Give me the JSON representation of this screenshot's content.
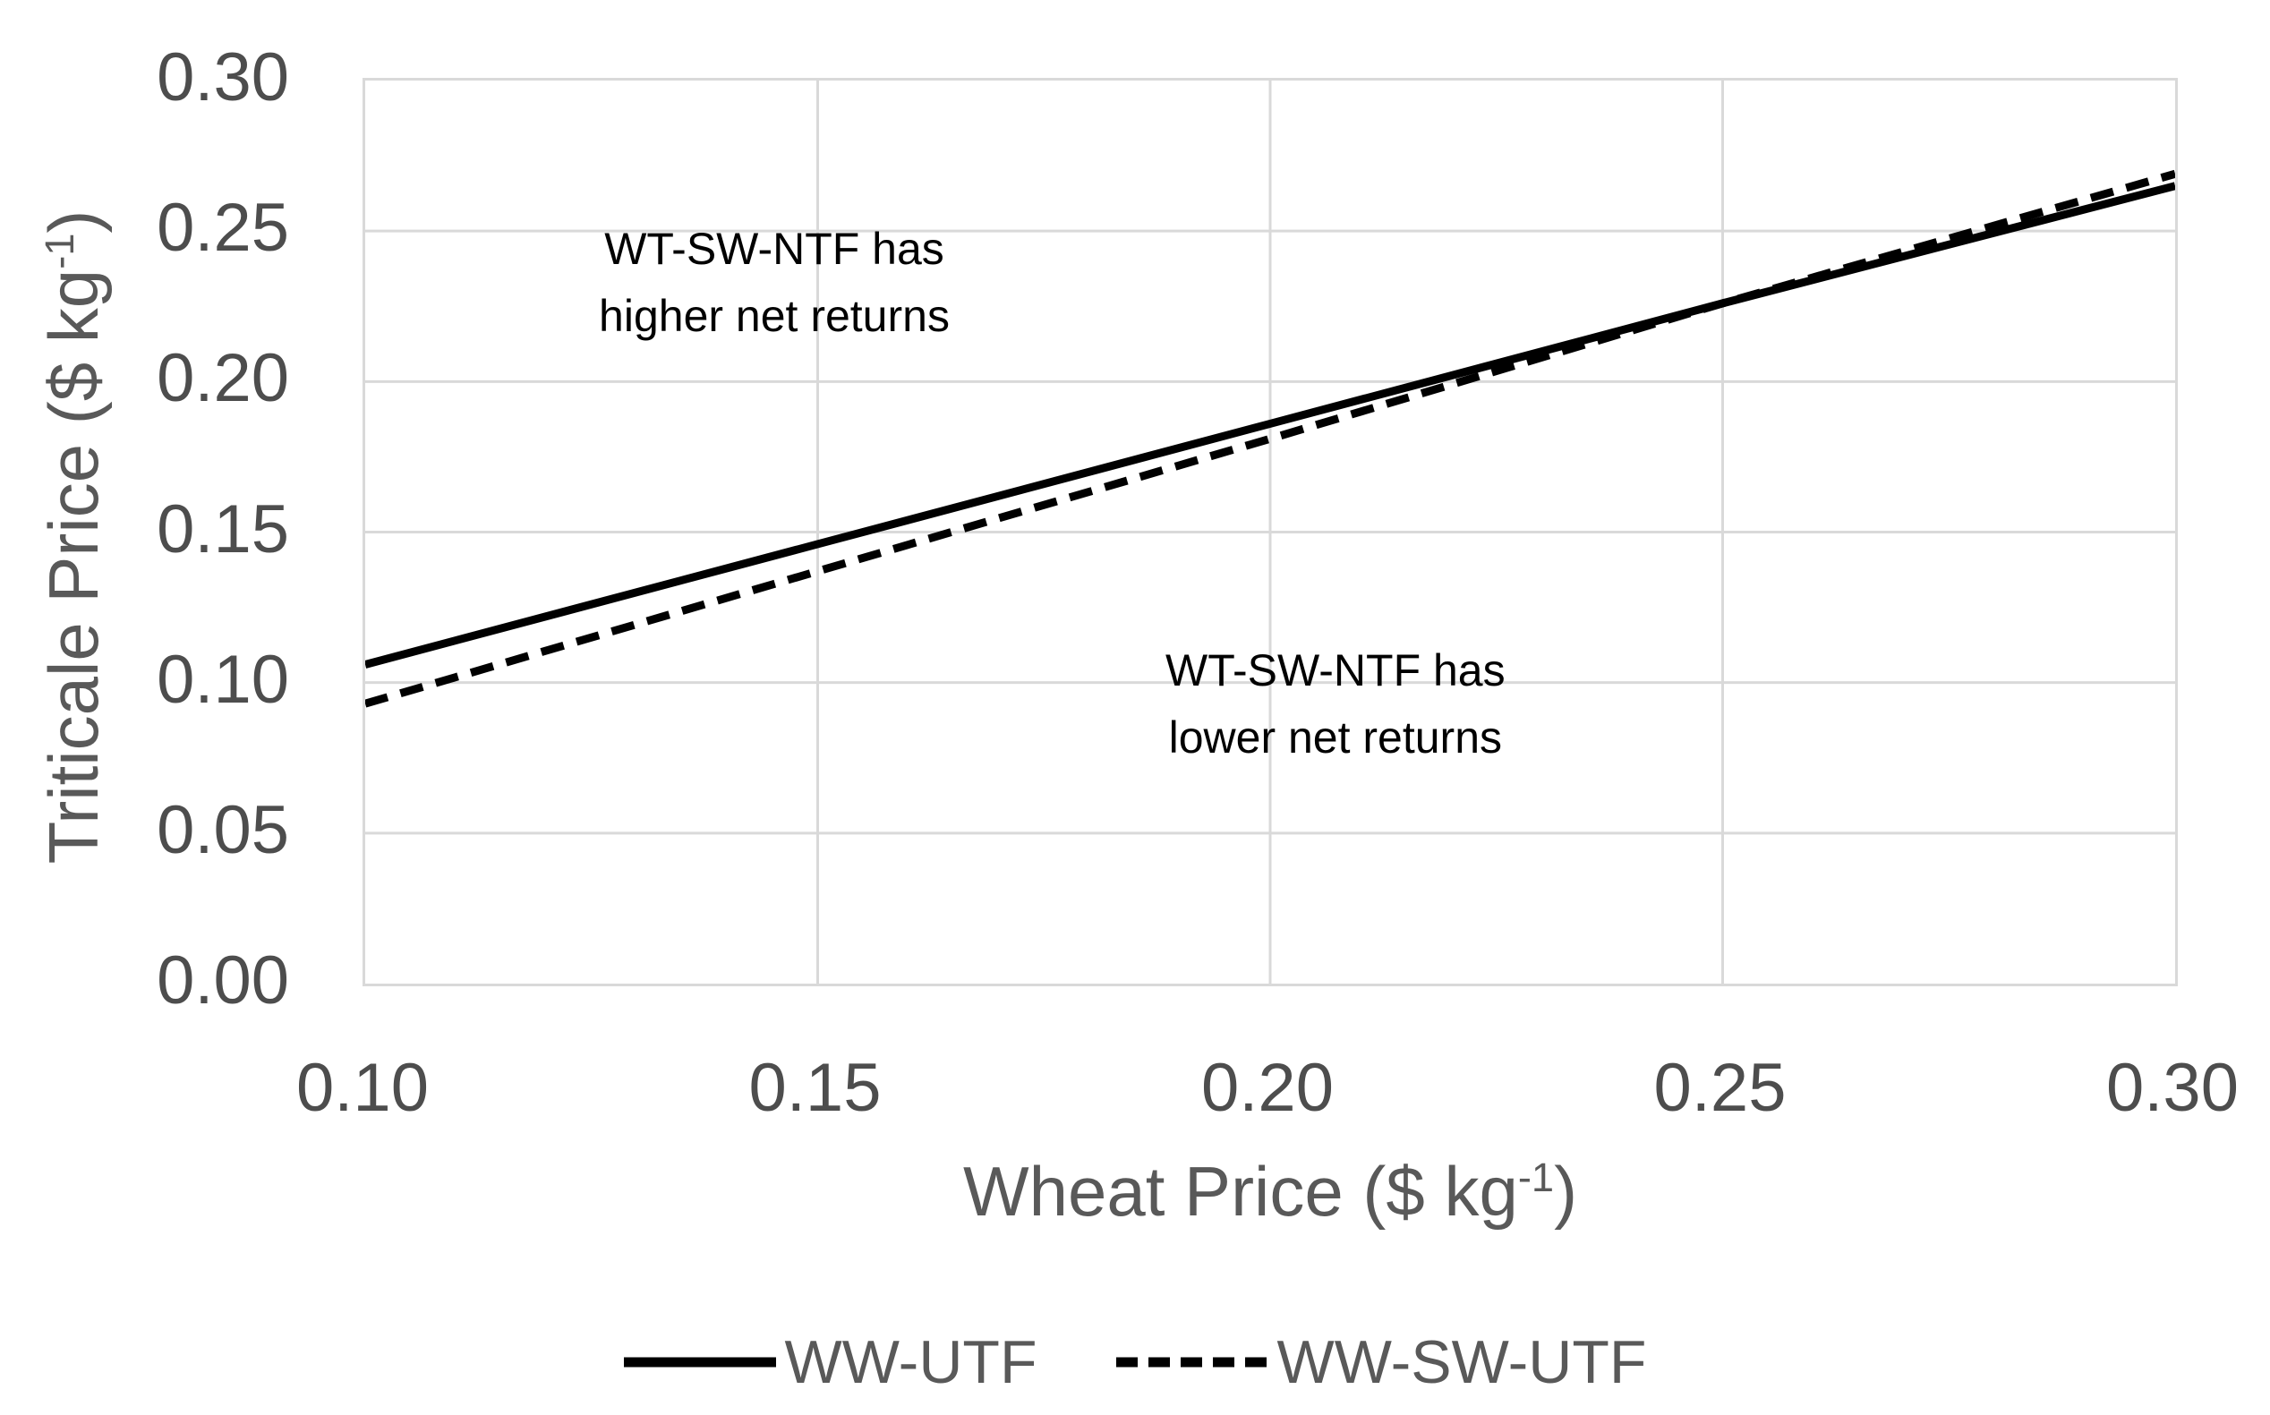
{
  "chart_data": {
    "type": "line",
    "title": "",
    "x_axis": {
      "title_prefix": "Wheat Price ($ kg",
      "title_sup": "-1",
      "title_suffix": ")",
      "min": 0.1,
      "max": 0.3,
      "tick_values": [
        0.1,
        0.15,
        0.2,
        0.25,
        0.3
      ],
      "tick_labels": [
        "0.10",
        "0.15",
        "0.20",
        "0.25",
        "0.30"
      ]
    },
    "y_axis": {
      "title_prefix": "Triticale Price ($ kg",
      "title_sup": "-1",
      "title_suffix": ")",
      "min": 0.0,
      "max": 0.3,
      "tick_values": [
        0.0,
        0.05,
        0.1,
        0.15,
        0.2,
        0.25,
        0.3
      ],
      "tick_labels": [
        "0.00",
        "0.05",
        "0.10",
        "0.15",
        "0.20",
        "0.25",
        "0.30"
      ]
    },
    "grid": true,
    "legend_position": "bottom-center",
    "series": [
      {
        "name": "WW-UTF",
        "line_style": "solid",
        "color": "#000000",
        "x": [
          0.1,
          0.15,
          0.2,
          0.25,
          0.3
        ],
        "y": [
          0.106,
          0.146,
          0.186,
          0.226,
          0.265
        ]
      },
      {
        "name": "WW-SW-UTF",
        "line_style": "dashed",
        "color": "#000000",
        "x": [
          0.1,
          0.15,
          0.2,
          0.25,
          0.3
        ],
        "y": [
          0.093,
          0.137,
          0.181,
          0.226,
          0.269
        ]
      }
    ],
    "annotations": [
      {
        "lines": [
          "WT-SW-NTF has",
          "higher net returns"
        ],
        "x": 0.1455,
        "y": 0.232
      },
      {
        "lines": [
          "WT-SW-NTF has",
          "lower net returns"
        ],
        "x": 0.2075,
        "y": 0.092
      }
    ]
  },
  "legend": {
    "items": [
      {
        "label": "WW-UTF",
        "line_style": "solid"
      },
      {
        "label": "WW-SW-UTF",
        "line_style": "dashed"
      }
    ]
  },
  "colors": {
    "series_line": "#000000",
    "gridline": "#d9d9d9",
    "tick_text": "#4d4d4d",
    "title_text": "#595959",
    "annotation_text": "#000000",
    "background": "#ffffff"
  }
}
